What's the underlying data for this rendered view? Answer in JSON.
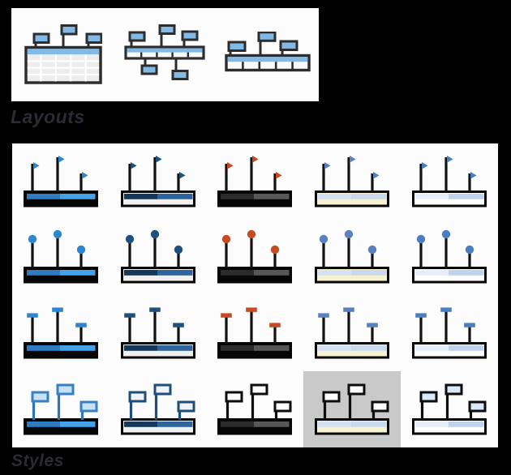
{
  "labels": {
    "layouts": "Layouts",
    "styles": "Styles"
  },
  "colors": {
    "background": "#000000",
    "panel": "#fcfcfc",
    "selected_cell": "#c9c9c9",
    "label_text": "#2b2b33",
    "outline": "#2d2d2d",
    "layout_accent": "#82bae5",
    "layout_table_cell": "#ededed"
  },
  "layouts": {
    "items": [
      {
        "id": "table-flags",
        "name": "layout-flags-over-table"
      },
      {
        "id": "both-sides",
        "name": "layout-flags-both-sides-timeline"
      },
      {
        "id": "above",
        "name": "layout-flags-above-timeline"
      }
    ]
  },
  "styles": {
    "marker_rows": [
      {
        "marker": "pennant"
      },
      {
        "marker": "circle"
      },
      {
        "marker": "cap"
      },
      {
        "marker": "flag"
      }
    ],
    "color_columns": [
      {
        "name": "bright-blue",
        "marker": "#2e86d0",
        "pole": "#111111",
        "bar_top_left": "#2e7bc2",
        "bar_top_right": "#44a2e8",
        "bar_bottom": "#060606",
        "frame": "#060606",
        "flag_stroke": "#3a7fc1",
        "flag_fill": "#c7e1f6",
        "flag_pole": "#2e75b6"
      },
      {
        "name": "dark-blue",
        "marker": "#20507f",
        "pole": "#111111",
        "bar_top_left": "#16375c",
        "bar_top_right": "#2e649c",
        "bar_bottom": "#f0f0f0",
        "frame": "#060606",
        "flag_stroke": "#1f4e79",
        "flag_fill": "#eef3f9",
        "flag_pole": "#1f4e79"
      },
      {
        "name": "black-red",
        "marker": "#c64a22",
        "pole": "#111111",
        "bar_top_left": "#2b2b2b",
        "bar_top_right": "#575757",
        "bar_bottom": "#060606",
        "frame": "#060606",
        "flag_stroke": "#0d0d0d",
        "flag_fill": "#ffffff",
        "flag_pole": "#0d0d0d"
      },
      {
        "name": "light-cream",
        "marker": "#5b80c0",
        "pole": "#111111",
        "bar_top_left": "#d5e2f4",
        "bar_top_right": "#c9daef",
        "bar_bottom": "#f6f1d1",
        "frame": "#060606",
        "flag_stroke": "#0d0d0d",
        "flag_fill": "#ffffff",
        "flag_pole": "#0d0d0d"
      },
      {
        "name": "light-blue",
        "marker": "#4a7ec2",
        "pole": "#111111",
        "bar_top_left": "#e5eef9",
        "bar_top_right": "#bed4ec",
        "bar_bottom": "#ffffff",
        "frame": "#060606",
        "flag_stroke": "#0d0d0d",
        "flag_fill": "#dae8f7",
        "flag_pole": "#0d0d0d"
      }
    ],
    "selected": {
      "row": 3,
      "col": 3
    }
  }
}
